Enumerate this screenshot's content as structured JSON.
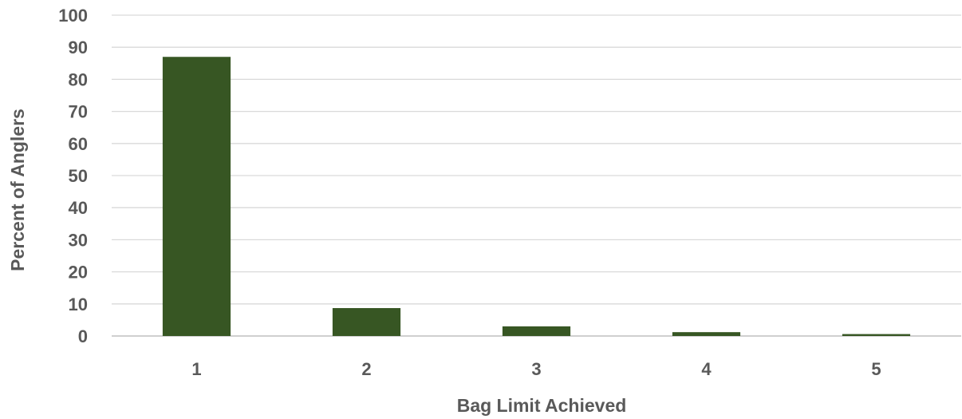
{
  "chart_data": {
    "type": "bar",
    "categories": [
      "1",
      "2",
      "3",
      "4",
      "5"
    ],
    "values": [
      87,
      8.7,
      3,
      1.2,
      0.6
    ],
    "xlabel": "Bag Limit Achieved",
    "ylabel": "Percent of Anglers",
    "ylim": [
      0,
      100
    ],
    "ytick_step": 10,
    "grid": true,
    "legend": "none",
    "colors": {
      "bar": "#375623",
      "grid": "#d9d9d9",
      "text": "#595959"
    }
  }
}
